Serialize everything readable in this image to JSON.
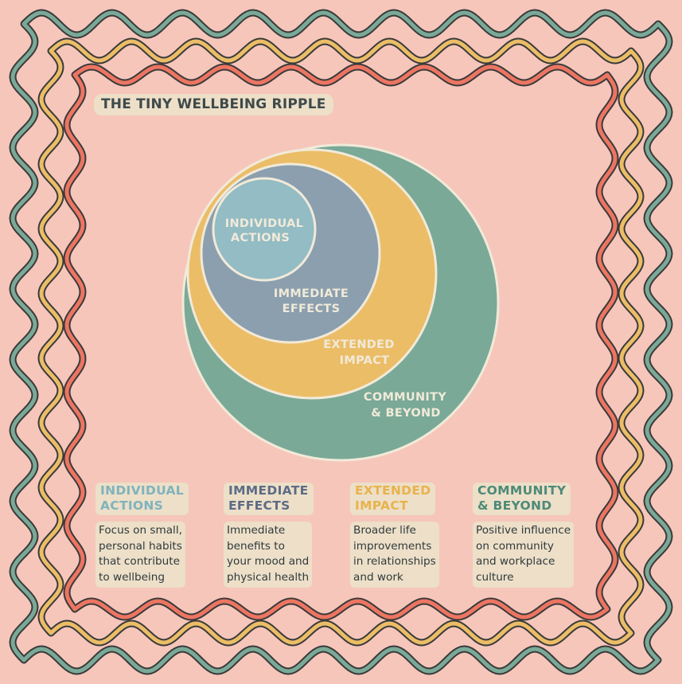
{
  "title": "THE TINY WELLBEING RIPPLE",
  "diagram": {
    "rings": [
      {
        "label_line1": "COMMUNITY",
        "label_line2": "& BEYOND",
        "fill": "#7aa997",
        "text_color": "#f1ead9"
      },
      {
        "label_line1": "EXTENDED",
        "label_line2": "IMPACT",
        "fill": "#ebbd67",
        "text_color": "#f1ead9"
      },
      {
        "label_line1": "IMMEDIATE",
        "label_line2": "EFFECTS",
        "fill": "#8b9fae",
        "text_color": "#f1ead9"
      },
      {
        "label_line1": "INDIVIDUAL",
        "label_line2": "ACTIONS",
        "fill": "#93bcc4",
        "text_color": "#f1ead9"
      }
    ]
  },
  "columns": [
    {
      "heading_line1": "INDIVIDUAL",
      "heading_line2": "ACTIONS",
      "desc": [
        "Focus on small,",
        "personal habits",
        "that contribute",
        "to wellbeing"
      ],
      "color": "#7fb3bd"
    },
    {
      "heading_line1": "IMMEDIATE",
      "heading_line2": "EFFECTS",
      "desc": [
        "Immediate",
        "benefits to",
        "your mood and",
        "physical health"
      ],
      "color": "#5c6c86"
    },
    {
      "heading_line1": "EXTENDED",
      "heading_line2": "IMPACT",
      "desc": [
        "Broader life",
        "improvements",
        "in relationships",
        "and work"
      ],
      "color": "#e8b34d"
    },
    {
      "heading_line1": "COMMUNITY",
      "heading_line2": "& BEYOND",
      "desc": [
        "Positive influence",
        "on community",
        "and workplace",
        "culture"
      ],
      "color": "#4d8a78"
    }
  ],
  "colors": {
    "background": "#f6c6bb",
    "border_outer": "#7aa997",
    "border_middle": "#ebbd67",
    "border_inner": "#ec7562",
    "outline": "#3a3a3a"
  }
}
